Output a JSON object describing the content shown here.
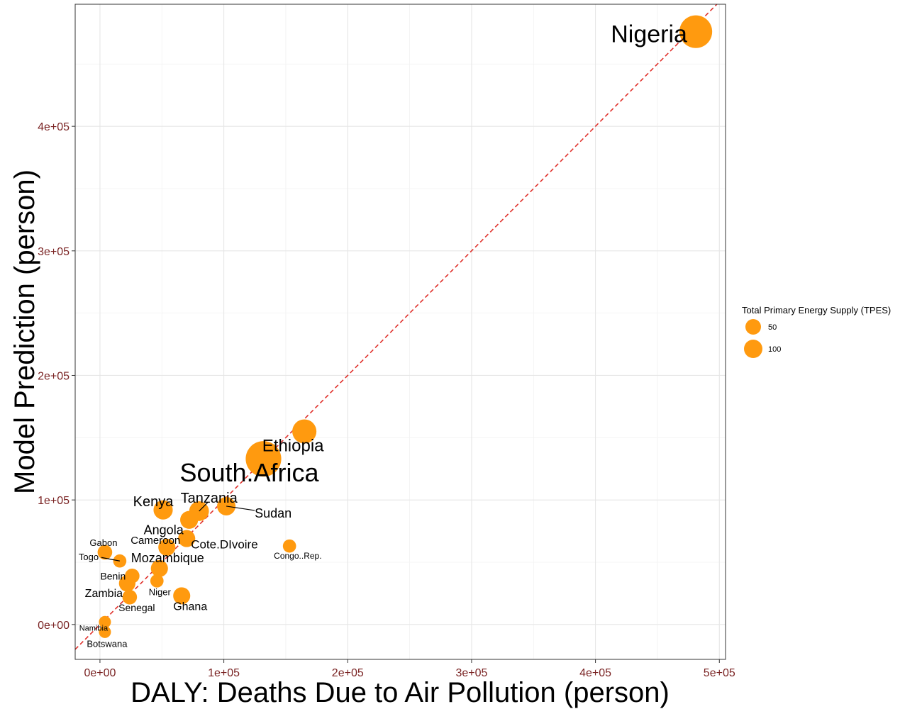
{
  "chart_data": {
    "type": "scatter",
    "xlabel": "DALY: Deaths Due to Air Pollution (person)",
    "ylabel": "Model Prediction (person)",
    "xlim": [
      -20000,
      505000
    ],
    "ylim": [
      -28000,
      498000
    ],
    "x_ticks": [
      0,
      100000,
      200000,
      300000,
      400000,
      500000
    ],
    "x_tick_labels": [
      "0e+00",
      "1e+05",
      "2e+05",
      "3e+05",
      "4e+05",
      "5e+05"
    ],
    "y_ticks": [
      0,
      100000,
      200000,
      300000,
      400000
    ],
    "y_tick_labels": [
      "0e+00",
      "1e+05",
      "2e+05",
      "3e+05",
      "4e+05"
    ],
    "grid": true,
    "reference_line": "y = x",
    "point_color": "#ff9a0f",
    "reference_line_color": "#e0302b",
    "tick_label_color": "#7a2323",
    "legend": {
      "title": "Total Primary Energy Supply (TPES)",
      "placement": "right",
      "entries": [
        {
          "label": "50",
          "size": 50
        },
        {
          "label": "100",
          "size": 100
        }
      ]
    },
    "points": [
      {
        "name": "Nigeria",
        "x": 481000,
        "y": 476000,
        "size": 110
      },
      {
        "name": "Ethiopia",
        "x": 165000,
        "y": 155000,
        "size": 60
      },
      {
        "name": "South.Africa",
        "x": 132000,
        "y": 133000,
        "size": 130
      },
      {
        "name": "Sudan",
        "x": 102000,
        "y": 95000,
        "size": 35
      },
      {
        "name": "Tanzania",
        "x": 80000,
        "y": 91000,
        "size": 40
      },
      {
        "name": "Kenya",
        "x": 51000,
        "y": 92000,
        "size": 38
      },
      {
        "name": "Angola",
        "x": 72000,
        "y": 84000,
        "size": 33
      },
      {
        "name": "Cote.DIvoire",
        "x": 70000,
        "y": 69000,
        "size": 30
      },
      {
        "name": "Cameroon",
        "x": 54000,
        "y": 62000,
        "size": 30
      },
      {
        "name": "Congo..Rep.",
        "x": 153000,
        "y": 63000,
        "size": 18
      },
      {
        "name": "Gabon",
        "x": 4000,
        "y": 58000,
        "size": 22
      },
      {
        "name": "Togo",
        "x": 16000,
        "y": 51000,
        "size": 18
      },
      {
        "name": "Mozambique",
        "x": 48000,
        "y": 45000,
        "size": 30
      },
      {
        "name": "Benin",
        "x": 26000,
        "y": 39000,
        "size": 22
      },
      {
        "name": "Niger",
        "x": 46000,
        "y": 35000,
        "size": 18
      },
      {
        "name": "Zambia",
        "x": 22000,
        "y": 33000,
        "size": 28
      },
      {
        "name": "Senegal",
        "x": 24000,
        "y": 22000,
        "size": 22
      },
      {
        "name": "Ghana",
        "x": 66000,
        "y": 23000,
        "size": 30
      },
      {
        "name": "Namibia",
        "x": 4000,
        "y": 2000,
        "size": 15
      },
      {
        "name": "Botswana",
        "x": 4000,
        "y": -6000,
        "size": 15
      }
    ]
  }
}
